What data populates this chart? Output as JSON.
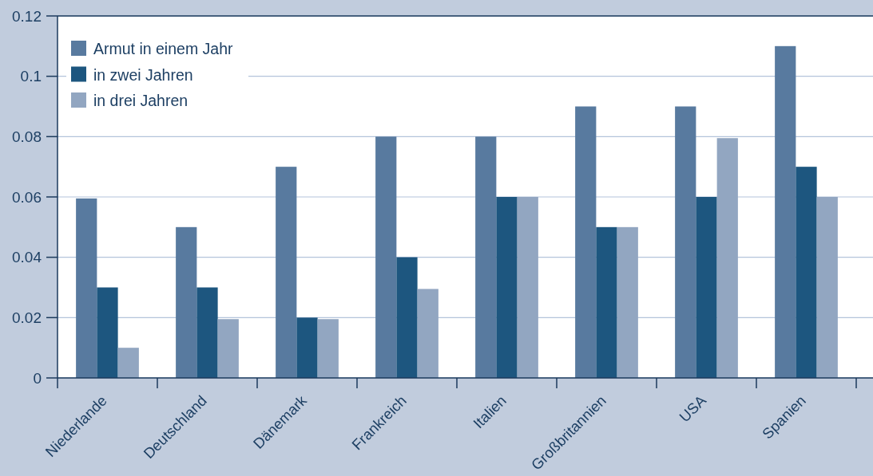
{
  "chart_data": {
    "type": "bar",
    "categories": [
      "Niederlande",
      "Deutschland",
      "Dänemark",
      "Frankreich",
      "Italien",
      "Großbritannien",
      "USA",
      "Spanien"
    ],
    "series": [
      {
        "name": "Armut in einem Jahr",
        "color": "#587a9f",
        "values": [
          0.0595,
          0.05,
          0.07,
          0.08,
          0.08,
          0.09,
          0.09,
          0.11
        ]
      },
      {
        "name": "in zwei Jahren",
        "color": "#1d567f",
        "values": [
          0.03,
          0.03,
          0.02,
          0.04,
          0.06,
          0.05,
          0.06,
          0.07
        ]
      },
      {
        "name": "in drei Jahren",
        "color": "#92a6c1",
        "values": [
          0.01,
          0.0195,
          0.0195,
          0.0295,
          0.06,
          0.05,
          0.0795,
          0.06
        ]
      }
    ],
    "ylim": [
      0,
      0.12
    ],
    "yticks": [
      0,
      0.02,
      0.04,
      0.06,
      0.08,
      0.1,
      0.12
    ],
    "grid": "y",
    "legend": "top left"
  }
}
